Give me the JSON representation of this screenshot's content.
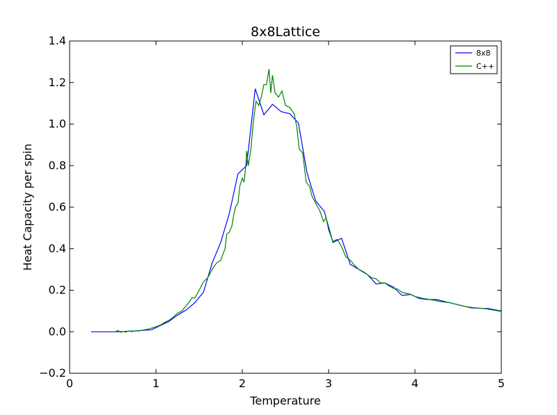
{
  "chart_data": {
    "type": "line",
    "title": "8x8Lattice",
    "xlabel": "Temperature",
    "ylabel": "Heat Capacity per spin",
    "xlim": [
      0,
      5
    ],
    "ylim": [
      -0.2,
      1.4
    ],
    "xticks": [
      "0",
      "1",
      "2",
      "3",
      "4",
      "5"
    ],
    "yticks": [
      "−0.2",
      "0.0",
      "0.2",
      "0.4",
      "0.6",
      "0.8",
      "1.0",
      "1.2",
      "1.4"
    ],
    "grid": false,
    "legend_position": "top-right",
    "series": [
      {
        "name": "8x8",
        "color": "#0000ff",
        "points": [
          [
            0.25,
            0.0
          ],
          [
            0.55,
            0.0
          ],
          [
            0.75,
            0.004
          ],
          [
            0.95,
            0.01
          ],
          [
            1.05,
            0.03
          ],
          [
            1.15,
            0.05
          ],
          [
            1.25,
            0.08
          ],
          [
            1.35,
            0.105
          ],
          [
            1.45,
            0.14
          ],
          [
            1.55,
            0.19
          ],
          [
            1.65,
            0.33
          ],
          [
            1.75,
            0.43
          ],
          [
            1.85,
            0.57
          ],
          [
            1.95,
            0.76
          ],
          [
            2.05,
            0.8
          ],
          [
            2.15,
            1.17
          ],
          [
            2.25,
            1.045
          ],
          [
            2.35,
            1.095
          ],
          [
            2.45,
            1.06
          ],
          [
            2.55,
            1.05
          ],
          [
            2.65,
            1.005
          ],
          [
            2.75,
            0.765
          ],
          [
            2.85,
            0.63
          ],
          [
            2.95,
            0.58
          ],
          [
            3.05,
            0.43
          ],
          [
            3.15,
            0.45
          ],
          [
            3.25,
            0.325
          ],
          [
            3.35,
            0.3
          ],
          [
            3.45,
            0.275
          ],
          [
            3.55,
            0.23
          ],
          [
            3.65,
            0.235
          ],
          [
            3.75,
            0.215
          ],
          [
            3.85,
            0.175
          ],
          [
            3.95,
            0.18
          ],
          [
            4.05,
            0.16
          ],
          [
            4.15,
            0.155
          ],
          [
            4.25,
            0.155
          ],
          [
            4.35,
            0.145
          ],
          [
            4.45,
            0.135
          ],
          [
            4.55,
            0.125
          ],
          [
            4.65,
            0.115
          ],
          [
            4.75,
            0.113
          ],
          [
            4.85,
            0.112
          ],
          [
            5.0,
            0.1
          ]
        ]
      },
      {
        "name": "C++",
        "color": "#008000",
        "points": [
          [
            0.53,
            0.0
          ],
          [
            0.56,
            0.006
          ],
          [
            0.59,
            -0.003
          ],
          [
            0.62,
            0.002
          ],
          [
            0.65,
            -0.002
          ],
          [
            0.68,
            0.004
          ],
          [
            0.72,
            0.001
          ],
          [
            0.76,
            0.005
          ],
          [
            0.8,
            0.004
          ],
          [
            0.85,
            0.008
          ],
          [
            0.9,
            0.012
          ],
          [
            0.95,
            0.018
          ],
          [
            1.0,
            0.024
          ],
          [
            1.05,
            0.032
          ],
          [
            1.1,
            0.045
          ],
          [
            1.15,
            0.055
          ],
          [
            1.2,
            0.07
          ],
          [
            1.25,
            0.09
          ],
          [
            1.3,
            0.1
          ],
          [
            1.35,
            0.125
          ],
          [
            1.38,
            0.14
          ],
          [
            1.42,
            0.165
          ],
          [
            1.45,
            0.162
          ],
          [
            1.5,
            0.2
          ],
          [
            1.55,
            0.24
          ],
          [
            1.6,
            0.26
          ],
          [
            1.65,
            0.3
          ],
          [
            1.7,
            0.33
          ],
          [
            1.75,
            0.345
          ],
          [
            1.8,
            0.4
          ],
          [
            1.82,
            0.47
          ],
          [
            1.85,
            0.48
          ],
          [
            1.88,
            0.51
          ],
          [
            1.9,
            0.56
          ],
          [
            1.92,
            0.6
          ],
          [
            1.95,
            0.62
          ],
          [
            1.97,
            0.7
          ],
          [
            2.0,
            0.74
          ],
          [
            2.02,
            0.72
          ],
          [
            2.04,
            0.8
          ],
          [
            2.05,
            0.87
          ],
          [
            2.07,
            0.8
          ],
          [
            2.1,
            0.88
          ],
          [
            2.13,
            1.02
          ],
          [
            2.16,
            1.11
          ],
          [
            2.19,
            1.09
          ],
          [
            2.22,
            1.13
          ],
          [
            2.25,
            1.19
          ],
          [
            2.28,
            1.19
          ],
          [
            2.31,
            1.265
          ],
          [
            2.33,
            1.15
          ],
          [
            2.35,
            1.235
          ],
          [
            2.38,
            1.15
          ],
          [
            2.42,
            1.13
          ],
          [
            2.46,
            1.16
          ],
          [
            2.5,
            1.09
          ],
          [
            2.55,
            1.08
          ],
          [
            2.6,
            1.05
          ],
          [
            2.63,
            0.99
          ],
          [
            2.66,
            0.88
          ],
          [
            2.7,
            0.86
          ],
          [
            2.72,
            0.79
          ],
          [
            2.74,
            0.72
          ],
          [
            2.78,
            0.7
          ],
          [
            2.81,
            0.65
          ],
          [
            2.85,
            0.62
          ],
          [
            2.9,
            0.58
          ],
          [
            2.94,
            0.53
          ],
          [
            2.97,
            0.55
          ],
          [
            3.0,
            0.49
          ],
          [
            3.05,
            0.435
          ],
          [
            3.1,
            0.445
          ],
          [
            3.15,
            0.41
          ],
          [
            3.2,
            0.36
          ],
          [
            3.25,
            0.345
          ],
          [
            3.3,
            0.32
          ],
          [
            3.35,
            0.3
          ],
          [
            3.4,
            0.29
          ],
          [
            3.45,
            0.275
          ],
          [
            3.5,
            0.26
          ],
          [
            3.55,
            0.255
          ],
          [
            3.6,
            0.235
          ],
          [
            3.65,
            0.235
          ],
          [
            3.7,
            0.22
          ],
          [
            3.75,
            0.21
          ],
          [
            3.8,
            0.205
          ],
          [
            3.85,
            0.19
          ],
          [
            3.9,
            0.185
          ],
          [
            3.95,
            0.18
          ],
          [
            4.0,
            0.17
          ],
          [
            4.1,
            0.16
          ],
          [
            4.2,
            0.153
          ],
          [
            4.3,
            0.145
          ],
          [
            4.4,
            0.14
          ],
          [
            4.5,
            0.13
          ],
          [
            4.6,
            0.12
          ],
          [
            4.7,
            0.115
          ],
          [
            4.8,
            0.112
          ],
          [
            4.9,
            0.105
          ],
          [
            5.0,
            0.098
          ]
        ]
      }
    ]
  }
}
